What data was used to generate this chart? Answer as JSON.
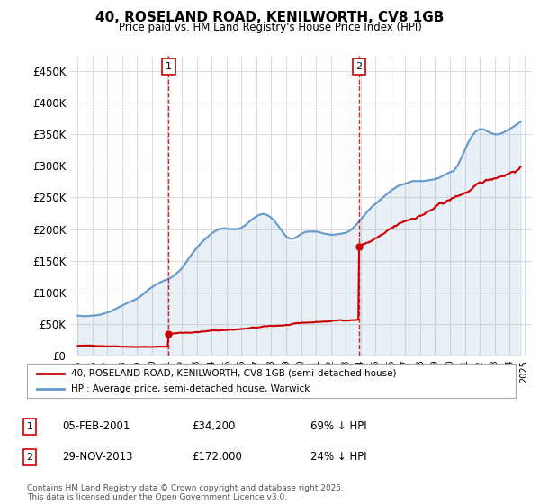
{
  "title": "40, ROSELAND ROAD, KENILWORTH, CV8 1GB",
  "subtitle": "Price paid vs. HM Land Registry's House Price Index (HPI)",
  "ylim": [
    0,
    475000
  ],
  "yticks": [
    0,
    50000,
    100000,
    150000,
    200000,
    250000,
    300000,
    350000,
    400000,
    450000
  ],
  "ytick_labels": [
    "£0",
    "£50K",
    "£100K",
    "£150K",
    "£200K",
    "£250K",
    "£300K",
    "£350K",
    "£400K",
    "£450K"
  ],
  "background_color": "#ffffff",
  "grid_color": "#dddddd",
  "hpi_color": "#6699cc",
  "price_color": "#cc0000",
  "marker1_year": 2001.1,
  "marker2_year": 2013.9,
  "marker1_price": 34200,
  "marker2_price": 172000,
  "legend_line1": "40, ROSELAND ROAD, KENILWORTH, CV8 1GB (semi-detached house)",
  "legend_line2": "HPI: Average price, semi-detached house, Warwick",
  "footer": "Contains HM Land Registry data © Crown copyright and database right 2025.\nThis data is licensed under the Open Government Licence v3.0.",
  "hpi_data_x": [
    1995.0,
    1995.25,
    1995.5,
    1995.75,
    1996.0,
    1996.25,
    1996.5,
    1996.75,
    1997.0,
    1997.25,
    1997.5,
    1997.75,
    1998.0,
    1998.25,
    1998.5,
    1998.75,
    1999.0,
    1999.25,
    1999.5,
    1999.75,
    2000.0,
    2000.25,
    2000.5,
    2000.75,
    2001.0,
    2001.25,
    2001.5,
    2001.75,
    2002.0,
    2002.25,
    2002.5,
    2002.75,
    2003.0,
    2003.25,
    2003.5,
    2003.75,
    2004.0,
    2004.25,
    2004.5,
    2004.75,
    2005.0,
    2005.25,
    2005.5,
    2005.75,
    2006.0,
    2006.25,
    2006.5,
    2006.75,
    2007.0,
    2007.25,
    2007.5,
    2007.75,
    2008.0,
    2008.25,
    2008.5,
    2008.75,
    2009.0,
    2009.25,
    2009.5,
    2009.75,
    2010.0,
    2010.25,
    2010.5,
    2010.75,
    2011.0,
    2011.25,
    2011.5,
    2011.75,
    2012.0,
    2012.25,
    2012.5,
    2012.75,
    2013.0,
    2013.25,
    2013.5,
    2013.75,
    2014.0,
    2014.25,
    2014.5,
    2014.75,
    2015.0,
    2015.25,
    2015.5,
    2015.75,
    2016.0,
    2016.25,
    2016.5,
    2016.75,
    2017.0,
    2017.25,
    2017.5,
    2017.75,
    2018.0,
    2018.25,
    2018.5,
    2018.75,
    2019.0,
    2019.25,
    2019.5,
    2019.75,
    2020.0,
    2020.25,
    2020.5,
    2020.75,
    2021.0,
    2021.25,
    2021.5,
    2021.75,
    2022.0,
    2022.25,
    2022.5,
    2022.75,
    2023.0,
    2023.25,
    2023.5,
    2023.75,
    2024.0,
    2024.25,
    2024.5,
    2024.75
  ],
  "hpi_data_y": [
    63000,
    62500,
    62000,
    62500,
    63000,
    63500,
    64500,
    66000,
    68000,
    70000,
    73000,
    76000,
    79000,
    82000,
    85000,
    87000,
    90000,
    94000,
    99000,
    104000,
    108000,
    112000,
    115000,
    118000,
    120000,
    123000,
    127000,
    132000,
    138000,
    146000,
    155000,
    163000,
    170000,
    177000,
    183000,
    188000,
    193000,
    197000,
    200000,
    201000,
    201000,
    200000,
    200000,
    200000,
    202000,
    206000,
    211000,
    216000,
    220000,
    223000,
    224000,
    222000,
    218000,
    212000,
    204000,
    196000,
    188000,
    185000,
    185000,
    188000,
    192000,
    195000,
    196000,
    196000,
    196000,
    195000,
    193000,
    192000,
    191000,
    191000,
    192000,
    193000,
    194000,
    197000,
    202000,
    208000,
    215000,
    222000,
    229000,
    235000,
    240000,
    245000,
    250000,
    255000,
    260000,
    264000,
    268000,
    270000,
    272000,
    274000,
    276000,
    276000,
    276000,
    276000,
    277000,
    278000,
    279000,
    281000,
    284000,
    287000,
    290000,
    292000,
    300000,
    312000,
    325000,
    338000,
    348000,
    355000,
    358000,
    358000,
    355000,
    352000,
    350000,
    350000,
    352000,
    355000,
    358000,
    362000,
    366000,
    370000
  ],
  "annot1_date": "05-FEB-2001",
  "annot1_price": "£34,200",
  "annot1_hpi": "69% ↓ HPI",
  "annot2_date": "29-NOV-2013",
  "annot2_price": "£172,000",
  "annot2_hpi": "24% ↓ HPI"
}
